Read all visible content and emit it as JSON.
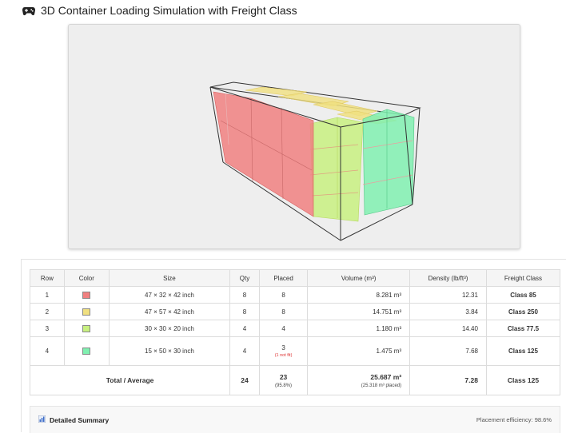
{
  "header": {
    "title": "3D Container Loading Simulation with Freight Class",
    "icon": "gamepad-icon"
  },
  "table": {
    "headers": [
      "Row",
      "Color",
      "Size",
      "Qty",
      "Placed",
      "Volume (m³)",
      "Density (lb/ft³)",
      "Freight Class"
    ],
    "rows": [
      {
        "row": "1",
        "color": "#f08080",
        "size": "47 × 32 × 42 inch",
        "qty": "8",
        "placed": "8",
        "note": "",
        "volume": "8.281 m³",
        "density": "12.31",
        "freight_class": "Class 85"
      },
      {
        "row": "2",
        "color": "#f0e080",
        "size": "47 × 57 × 42 inch",
        "qty": "8",
        "placed": "8",
        "note": "",
        "volume": "14.751 m³",
        "density": "3.84",
        "freight_class": "Class 250"
      },
      {
        "row": "3",
        "color": "#c8f080",
        "size": "30 × 30 × 20 inch",
        "qty": "4",
        "placed": "4",
        "note": "",
        "volume": "1.180 m³",
        "density": "14.40",
        "freight_class": "Class 77.5"
      },
      {
        "row": "4",
        "color": "#80f0b0",
        "size": "15 × 50 × 30 inch",
        "qty": "4",
        "placed": "3",
        "note": "(1 not fit)",
        "volume": "1.475 m³",
        "density": "7.68",
        "freight_class": "Class 125"
      }
    ],
    "total": {
      "label": "Total / Average",
      "qty": "24",
      "placed": "23",
      "placed_pct": "(95.8%)",
      "volume": "25.687 m³",
      "volume_placed": "(25.318 m³ placed)",
      "density": "7.28",
      "freight_class": "Class 125"
    }
  },
  "summary": {
    "title": "Detailed Summary",
    "icon": "bar-chart-icon",
    "efficiency": "Placement efficiency: 98.6%"
  }
}
